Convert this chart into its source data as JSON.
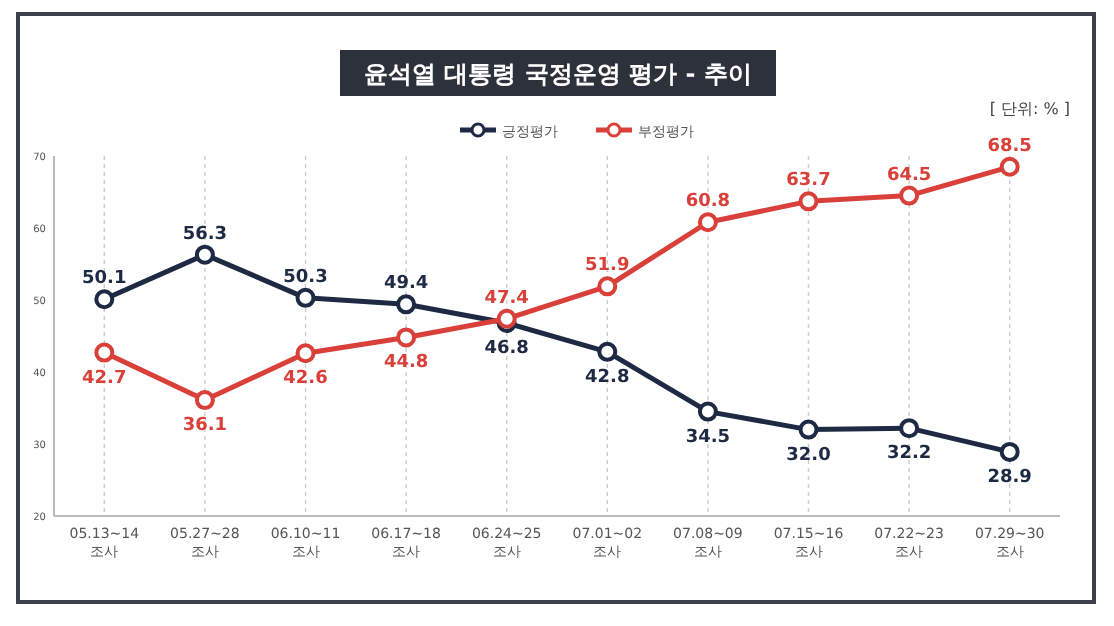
{
  "chart_data": {
    "type": "line",
    "title": "윤석열 대통령 국정운영 평가 - 추이",
    "annotations": [
      "[ 단위: % ]"
    ],
    "categories": [
      "05.13~14 조사",
      "05.27~28 조사",
      "06.10~11 조사",
      "06.17~18 조사",
      "06.24~25 조사",
      "07.01~02 조사",
      "07.08~09 조사",
      "07.15~16 조사",
      "07.22~23 조사",
      "07.29~30 조사"
    ],
    "series": [
      {
        "name": "긍정평가",
        "color": "#1e2a44",
        "values": [
          50.1,
          56.3,
          50.3,
          49.4,
          46.8,
          42.8,
          34.5,
          32.0,
          32.2,
          28.9
        ],
        "value_labels": [
          "50.1",
          "56.3",
          "50.3",
          "49.4",
          "46.8",
          "42.8",
          "34.5",
          "32.0",
          "32.2",
          "28.9"
        ]
      },
      {
        "name": "부정평가",
        "color": "#d9403a",
        "values": [
          42.7,
          36.1,
          42.6,
          44.8,
          47.4,
          51.9,
          60.8,
          63.7,
          64.5,
          68.5
        ],
        "value_labels": [
          "42.7",
          "36.1",
          "42.6",
          "44.8",
          "47.4",
          "51.9",
          "60.8",
          "63.7",
          "64.5",
          "68.5"
        ]
      }
    ],
    "ylim": [
      20,
      70
    ],
    "yticks": [
      20,
      30,
      40,
      50,
      60,
      70
    ],
    "grid": "x",
    "legend": "top",
    "marker": "circle",
    "line_style": "solid"
  }
}
